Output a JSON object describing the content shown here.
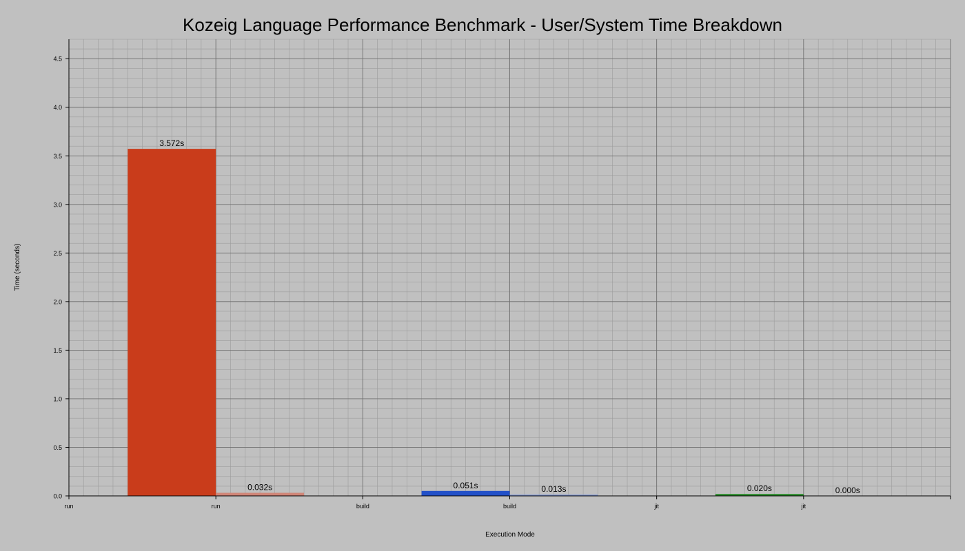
{
  "chart_data": {
    "type": "bar",
    "title": "Kozeig Language Performance Benchmark - User/System Time Breakdown",
    "xlabel": "Execution Mode",
    "ylabel": "Time (seconds)",
    "ylim": [
      0,
      4.7
    ],
    "y_ticks": [
      "0.0",
      "0.5",
      "1.0",
      "1.5",
      "2.0",
      "2.5",
      "3.0",
      "3.5",
      "4.0",
      "4.5"
    ],
    "y_tick_values": [
      0,
      0.5,
      1.0,
      1.5,
      2.0,
      2.5,
      3.0,
      3.5,
      4.0,
      4.5
    ],
    "x_tick_labels": [
      "run",
      "run",
      "build",
      "build",
      "jit",
      "jit"
    ],
    "x_range": [
      0,
      6
    ],
    "grid": true,
    "bars": [
      {
        "category": "run",
        "x_start": 0.4,
        "x_end": 1.0,
        "value": 3.572,
        "label": "3.572s",
        "color": "#c93c1b"
      },
      {
        "category": "run",
        "x_start": 1.0,
        "x_end": 1.6,
        "value": 0.032,
        "label": "0.032s",
        "color": "#d08577"
      },
      {
        "category": "build",
        "x_start": 2.4,
        "x_end": 3.0,
        "value": 0.051,
        "label": "0.051s",
        "color": "#2250c8"
      },
      {
        "category": "build",
        "x_start": 3.0,
        "x_end": 3.6,
        "value": 0.013,
        "label": "0.013s",
        "color": "#7f98d6"
      },
      {
        "category": "jit",
        "x_start": 4.4,
        "x_end": 5.0,
        "value": 0.02,
        "label": "0.020s",
        "color": "#2a8a2a"
      },
      {
        "category": "jit",
        "x_start": 5.0,
        "x_end": 5.6,
        "value": 0.0,
        "label": "0.000s",
        "color": "#7fb27f"
      }
    ]
  }
}
